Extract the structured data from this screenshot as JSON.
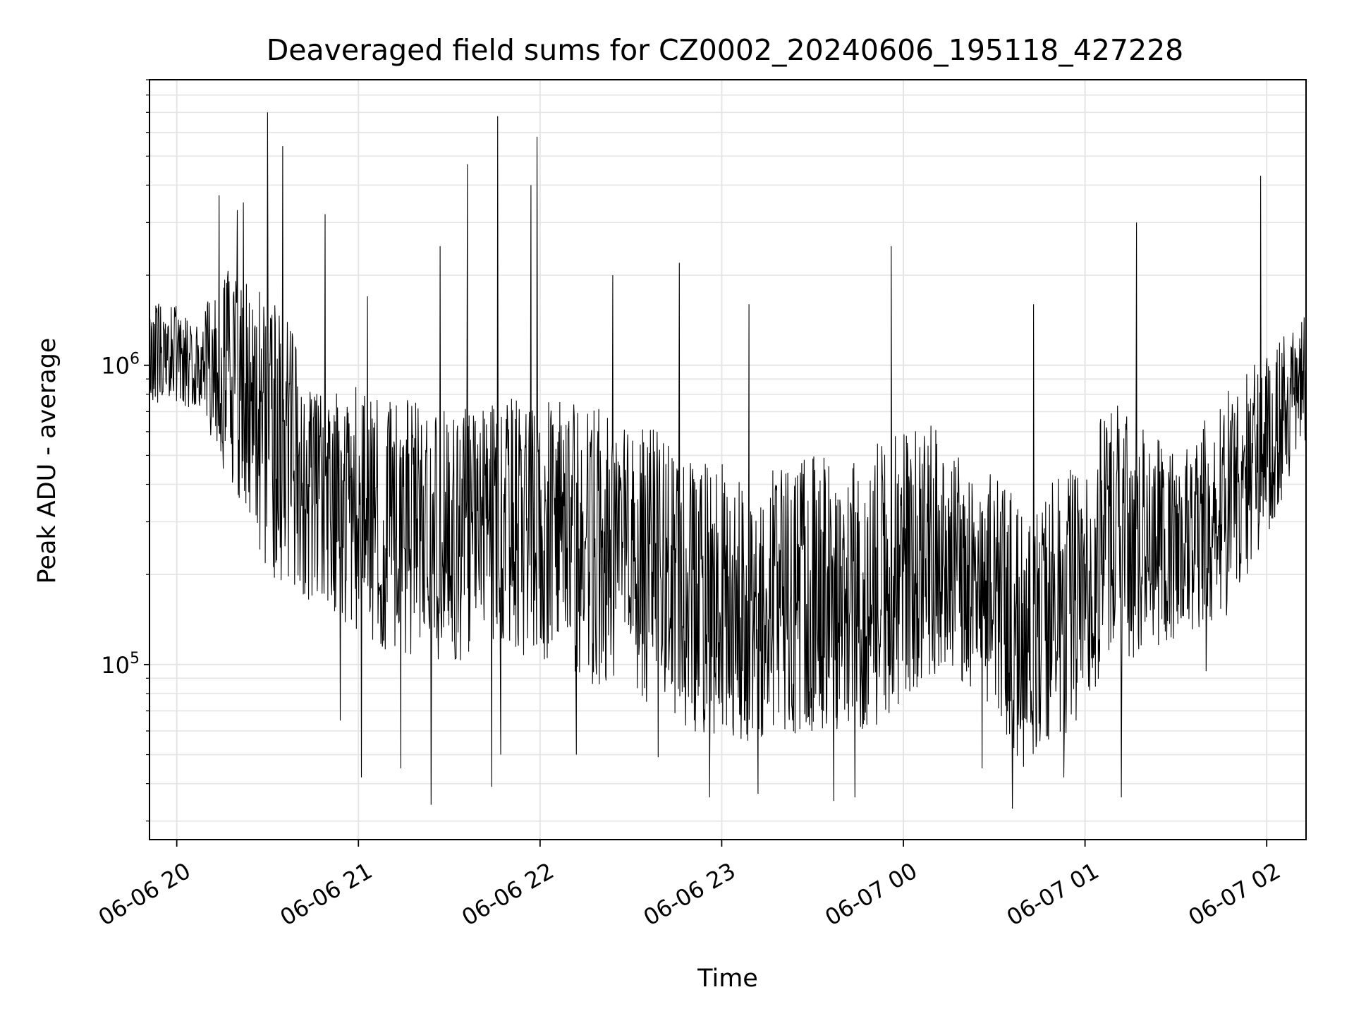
{
  "chart_data": {
    "type": "line",
    "title": "Deaveraged field sums for CZ0002_20240606_195118_427228",
    "xlabel": "Time",
    "ylabel": "Peak ADU - average",
    "yscale": "log",
    "ylim": [
      26000,
      9000000
    ],
    "xlim": [
      "2024-06-06 19:51",
      "2024-06-07 02:13"
    ],
    "grid": true,
    "line_color": "#000000",
    "grid_color": "#e5e5e5",
    "x_ticks": [
      {
        "label": "06-06 20",
        "value": "2024-06-06 20:00"
      },
      {
        "label": "06-06 21",
        "value": "2024-06-06 21:00"
      },
      {
        "label": "06-06 22",
        "value": "2024-06-06 22:00"
      },
      {
        "label": "06-06 23",
        "value": "2024-06-06 23:00"
      },
      {
        "label": "06-07 00",
        "value": "2024-06-07 00:00"
      },
      {
        "label": "06-07 01",
        "value": "2024-06-07 01:00"
      },
      {
        "label": "06-07 02",
        "value": "2024-06-07 02:00"
      }
    ],
    "y_ticks": [
      {
        "base": "10",
        "exp": "5",
        "value": 100000
      },
      {
        "base": "10",
        "exp": "6",
        "value": 1000000
      }
    ],
    "series_envelope": [
      {
        "t": "2024-06-06 19:51",
        "min": 750000,
        "max": 1700000
      },
      {
        "t": "2024-06-06 20:08",
        "min": 700000,
        "max": 1500000
      },
      {
        "t": "2024-06-06 20:15",
        "min": 450000,
        "max": 2200000
      },
      {
        "t": "2024-06-06 20:30",
        "min": 200000,
        "max": 1800000
      },
      {
        "t": "2024-06-06 20:50",
        "min": 150000,
        "max": 900000
      },
      {
        "t": "2024-06-06 21:10",
        "min": 110000,
        "max": 800000
      },
      {
        "t": "2024-06-06 21:30",
        "min": 100000,
        "max": 700000
      },
      {
        "t": "2024-06-06 21:50",
        "min": 110000,
        "max": 800000
      },
      {
        "t": "2024-06-06 22:10",
        "min": 90000,
        "max": 750000
      },
      {
        "t": "2024-06-06 22:30",
        "min": 80000,
        "max": 700000
      },
      {
        "t": "2024-06-06 22:50",
        "min": 60000,
        "max": 500000
      },
      {
        "t": "2024-06-06 23:10",
        "min": 55000,
        "max": 450000
      },
      {
        "t": "2024-06-06 23:30",
        "min": 60000,
        "max": 500000
      },
      {
        "t": "2024-06-06 23:50",
        "min": 60000,
        "max": 550000
      },
      {
        "t": "2024-06-07 00:10",
        "min": 90000,
        "max": 650000
      },
      {
        "t": "2024-06-07 00:25",
        "min": 80000,
        "max": 500000
      },
      {
        "t": "2024-06-07 00:40",
        "min": 45000,
        "max": 350000
      },
      {
        "t": "2024-06-07 00:55",
        "min": 60000,
        "max": 450000
      },
      {
        "t": "2024-06-07 01:10",
        "min": 100000,
        "max": 800000
      },
      {
        "t": "2024-06-07 01:30",
        "min": 120000,
        "max": 500000
      },
      {
        "t": "2024-06-07 01:50",
        "min": 150000,
        "max": 900000
      },
      {
        "t": "2024-06-07 02:13",
        "min": 550000,
        "max": 1500000
      }
    ],
    "spikes": [
      {
        "t": "2024-06-06 19:59",
        "v": 820000
      },
      {
        "t": "2024-06-06 20:14",
        "v": 3700000
      },
      {
        "t": "2024-06-06 20:20",
        "v": 3300000
      },
      {
        "t": "2024-06-06 20:22",
        "v": 3500000
      },
      {
        "t": "2024-06-06 20:30",
        "v": 7000000
      },
      {
        "t": "2024-06-06 20:35",
        "v": 5400000
      },
      {
        "t": "2024-06-06 20:49",
        "v": 3200000
      },
      {
        "t": "2024-06-06 21:03",
        "v": 1700000
      },
      {
        "t": "2024-06-06 21:27",
        "v": 2500000
      },
      {
        "t": "2024-06-06 21:36",
        "v": 4700000
      },
      {
        "t": "2024-06-06 21:46",
        "v": 6800000
      },
      {
        "t": "2024-06-06 21:57",
        "v": 4000000
      },
      {
        "t": "2024-06-06 21:59",
        "v": 5800000
      },
      {
        "t": "2024-06-06 22:24",
        "v": 2000000
      },
      {
        "t": "2024-06-06 22:46",
        "v": 2200000
      },
      {
        "t": "2024-06-06 23:09",
        "v": 1600000
      },
      {
        "t": "2024-06-06 23:56",
        "v": 2500000
      },
      {
        "t": "2024-06-07 00:43",
        "v": 1600000
      },
      {
        "t": "2024-06-07 01:17",
        "v": 3000000
      },
      {
        "t": "2024-06-07 01:58",
        "v": 4300000
      }
    ],
    "dips": [
      {
        "t": "2024-06-06 20:54",
        "v": 65000
      },
      {
        "t": "2024-06-06 21:01",
        "v": 42000
      },
      {
        "t": "2024-06-06 21:14",
        "v": 45000
      },
      {
        "t": "2024-06-06 21:24",
        "v": 34000
      },
      {
        "t": "2024-06-06 21:44",
        "v": 39000
      },
      {
        "t": "2024-06-06 21:47",
        "v": 50000
      },
      {
        "t": "2024-06-06 22:12",
        "v": 50000
      },
      {
        "t": "2024-06-06 22:39",
        "v": 49000
      },
      {
        "t": "2024-06-06 22:56",
        "v": 36000
      },
      {
        "t": "2024-06-06 23:12",
        "v": 37000
      },
      {
        "t": "2024-06-06 23:37",
        "v": 35000
      },
      {
        "t": "2024-06-06 23:44",
        "v": 36000
      },
      {
        "t": "2024-06-07 00:26",
        "v": 45000
      },
      {
        "t": "2024-06-07 00:36",
        "v": 33000
      },
      {
        "t": "2024-06-07 00:53",
        "v": 42000
      },
      {
        "t": "2024-06-07 01:12",
        "v": 36000
      },
      {
        "t": "2024-06-07 01:40",
        "v": 95000
      }
    ]
  }
}
